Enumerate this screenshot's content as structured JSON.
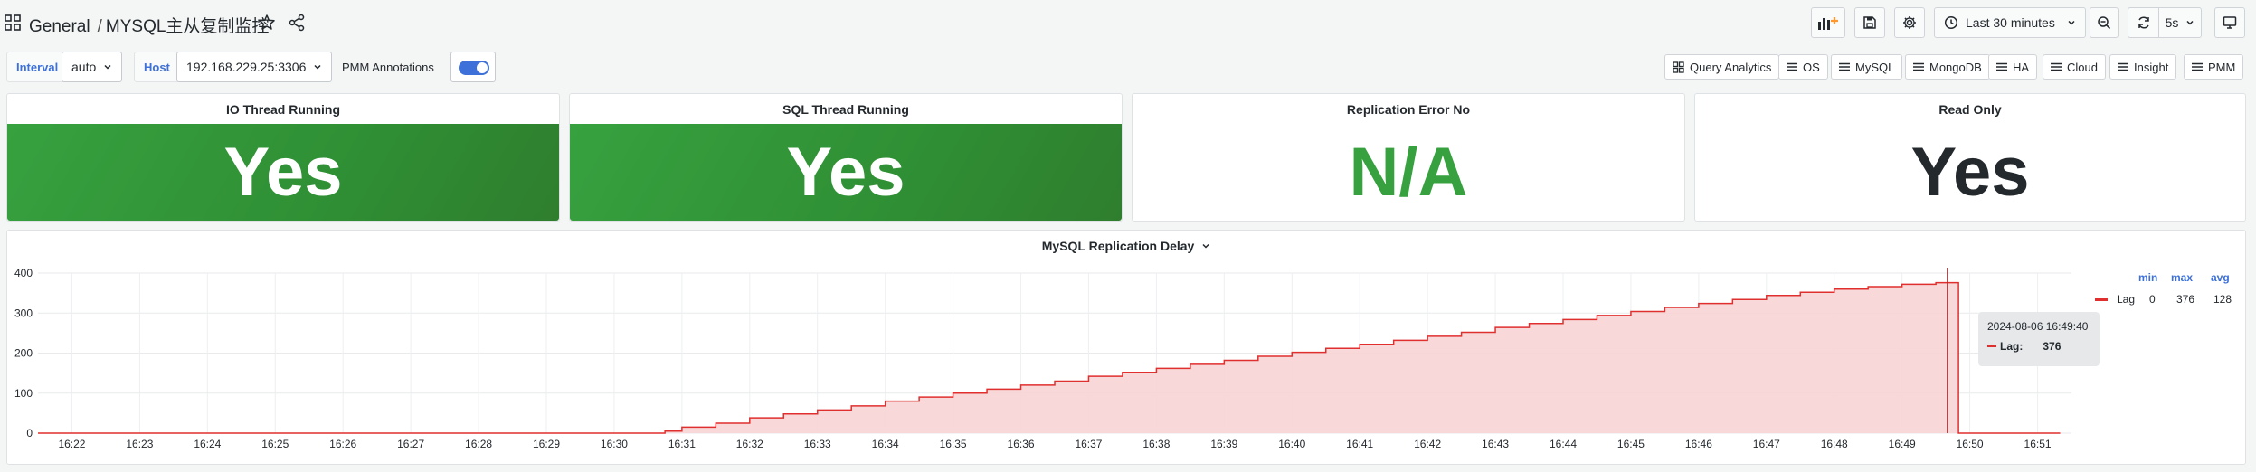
{
  "header": {
    "folder": "General",
    "separator": "/",
    "dashboard_title": "MYSQL主从复制监控",
    "time_range": "Last 30 minutes",
    "refresh_interval": "5s"
  },
  "variables": {
    "interval": {
      "label": "Interval",
      "value": "auto"
    },
    "host": {
      "label": "Host",
      "value": "192.168.229.25:3306"
    },
    "annotations": {
      "label": "PMM Annotations",
      "enabled": true
    }
  },
  "links": [
    "Query Analytics",
    "OS",
    "MySQL",
    "MongoDB",
    "HA",
    "Cloud",
    "Insight",
    "PMM"
  ],
  "stats": [
    {
      "title": "IO Thread Running",
      "value": "Yes"
    },
    {
      "title": "SQL Thread Running",
      "value": "Yes"
    },
    {
      "title": "Replication Error No",
      "value": "N/A"
    },
    {
      "title": "Read Only",
      "value": "Yes"
    }
  ],
  "colors": {
    "accent": "#3d71d9",
    "ok_green": "#37a13f",
    "lag_red": "#e02f2f",
    "lag_fill": "#f7d4d4"
  },
  "chart_data": {
    "type": "area",
    "title": "MySQL Replication Delay",
    "ylim": [
      0,
      400
    ],
    "yticks": [
      0,
      100,
      200,
      300,
      400
    ],
    "xticks": [
      "16:22",
      "16:23",
      "16:24",
      "16:25",
      "16:26",
      "16:27",
      "16:28",
      "16:29",
      "16:30",
      "16:31",
      "16:32",
      "16:33",
      "16:34",
      "16:35",
      "16:36",
      "16:37",
      "16:38",
      "16:39",
      "16:40",
      "16:41",
      "16:42",
      "16:43",
      "16:44",
      "16:45",
      "16:46",
      "16:47",
      "16:48",
      "16:49",
      "16:50",
      "16:51"
    ],
    "grid": true,
    "legend_placement": "right",
    "series": [
      {
        "name": "Lag",
        "x": [
          "16:21:30",
          "16:30:30",
          "16:30:45",
          "16:31:00",
          "16:31:30",
          "16:32:00",
          "16:32:30",
          "16:33:00",
          "16:33:30",
          "16:34:00",
          "16:34:30",
          "16:35:00",
          "16:35:30",
          "16:36:00",
          "16:36:30",
          "16:37:00",
          "16:37:30",
          "16:38:00",
          "16:38:30",
          "16:39:00",
          "16:39:30",
          "16:40:00",
          "16:40:30",
          "16:41:00",
          "16:41:30",
          "16:42:00",
          "16:42:30",
          "16:43:00",
          "16:43:30",
          "16:44:00",
          "16:44:30",
          "16:45:00",
          "16:45:30",
          "16:46:00",
          "16:46:30",
          "16:47:00",
          "16:47:30",
          "16:48:00",
          "16:48:30",
          "16:49:00",
          "16:49:30",
          "16:49:40",
          "16:49:50",
          "16:50:00",
          "16:51:20"
        ],
        "y": [
          0,
          0,
          5,
          15,
          25,
          38,
          48,
          58,
          68,
          80,
          90,
          100,
          110,
          120,
          130,
          142,
          152,
          162,
          172,
          182,
          192,
          202,
          212,
          222,
          232,
          242,
          252,
          264,
          274,
          284,
          294,
          304,
          314,
          324,
          334,
          344,
          352,
          360,
          366,
          372,
          376,
          376,
          0,
          0,
          0
        ]
      }
    ],
    "legend": {
      "headers": [
        "min",
        "max",
        "avg"
      ],
      "rows": [
        {
          "name": "Lag",
          "min": "0",
          "max": "376",
          "avg": "128"
        }
      ]
    },
    "tooltip": {
      "time": "2024-08-06 16:49:40",
      "series": "Lag:",
      "value": "376"
    }
  }
}
